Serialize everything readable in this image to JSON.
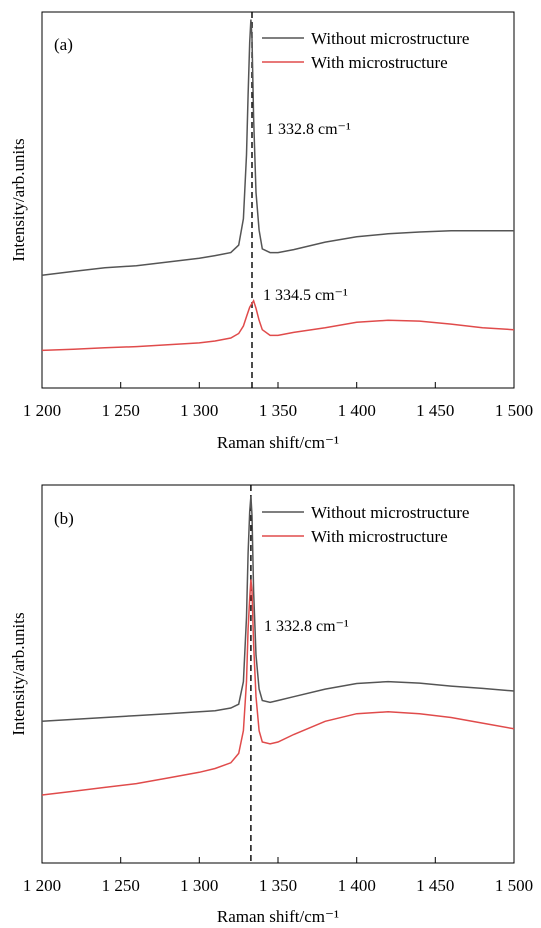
{
  "colors": {
    "without": "#555555",
    "with": "#e04b4b",
    "axis": "#000000",
    "refline": "#000000"
  },
  "chart_data": [
    {
      "type": "line",
      "panel_label": "(a)",
      "xlabel": "Raman shift/cm⁻¹",
      "ylabel": "Intensity/arb.units",
      "xlim": [
        1200,
        1500
      ],
      "ylim": [
        0,
        1
      ],
      "x_ticks": [
        1200,
        1250,
        1300,
        1350,
        1400,
        1450,
        1500
      ],
      "x_tick_labels": [
        "1 200",
        "1 250",
        "1 300",
        "1 350",
        "1 400",
        "1 450",
        "1 500"
      ],
      "grid": false,
      "legend_position": "top-right",
      "reference_line_x": 1333.5,
      "series": [
        {
          "name": "Without microstructure",
          "color_key": "without",
          "x": [
            1200,
            1220,
            1240,
            1260,
            1280,
            1300,
            1310,
            1320,
            1325,
            1328,
            1330,
            1331,
            1332,
            1332.8,
            1333.5,
            1334.5,
            1336,
            1338,
            1340,
            1345,
            1350,
            1360,
            1380,
            1400,
            1420,
            1440,
            1460,
            1480,
            1500
          ],
          "y": [
            0.3,
            0.31,
            0.32,
            0.325,
            0.335,
            0.345,
            0.352,
            0.36,
            0.38,
            0.45,
            0.62,
            0.78,
            0.92,
            0.98,
            0.93,
            0.72,
            0.52,
            0.42,
            0.37,
            0.36,
            0.36,
            0.368,
            0.388,
            0.402,
            0.41,
            0.415,
            0.418,
            0.418,
            0.418
          ]
        },
        {
          "name": "With microstructure",
          "color_key": "with",
          "x": [
            1200,
            1220,
            1240,
            1260,
            1280,
            1300,
            1310,
            1320,
            1325,
            1328,
            1330,
            1332,
            1334.5,
            1336,
            1338,
            1340,
            1345,
            1350,
            1360,
            1380,
            1400,
            1420,
            1440,
            1460,
            1480,
            1500
          ],
          "y": [
            0.1,
            0.103,
            0.107,
            0.11,
            0.115,
            0.12,
            0.125,
            0.133,
            0.145,
            0.165,
            0.19,
            0.215,
            0.232,
            0.212,
            0.18,
            0.155,
            0.14,
            0.14,
            0.148,
            0.16,
            0.175,
            0.18,
            0.178,
            0.17,
            0.16,
            0.155
          ]
        }
      ],
      "annotations": [
        {
          "text": "1 332.8 cm⁻¹",
          "x": 1332.8,
          "y": 0.75
        },
        {
          "text": "1 334.5 cm⁻¹",
          "x": 1334.5,
          "y": 0.28
        }
      ]
    },
    {
      "type": "line",
      "panel_label": "(b)",
      "xlabel": "Raman shift/cm⁻¹",
      "ylabel": "Intensity/arb.units",
      "xlim": [
        1200,
        1500
      ],
      "ylim": [
        0,
        1
      ],
      "x_ticks": [
        1200,
        1250,
        1300,
        1350,
        1400,
        1450,
        1500
      ],
      "x_tick_labels": [
        "1 200",
        "1 250",
        "1 300",
        "1 350",
        "1 400",
        "1 450",
        "1 500"
      ],
      "grid": false,
      "legend_position": "top-right",
      "reference_line_x": 1332.8,
      "series": [
        {
          "name": "Without microstructure",
          "color_key": "without",
          "x": [
            1200,
            1220,
            1240,
            1260,
            1280,
            1300,
            1310,
            1320,
            1325,
            1328,
            1330,
            1331,
            1332,
            1332.8,
            1333.5,
            1334.5,
            1336,
            1338,
            1340,
            1345,
            1350,
            1360,
            1380,
            1400,
            1420,
            1440,
            1460,
            1480,
            1500
          ],
          "y": [
            0.375,
            0.38,
            0.385,
            0.39,
            0.395,
            0.4,
            0.403,
            0.41,
            0.42,
            0.48,
            0.65,
            0.82,
            0.93,
            0.97,
            0.92,
            0.72,
            0.55,
            0.46,
            0.43,
            0.425,
            0.43,
            0.44,
            0.46,
            0.475,
            0.48,
            0.476,
            0.468,
            0.462,
            0.455
          ]
        },
        {
          "name": "With microstructure",
          "color_key": "with",
          "x": [
            1200,
            1220,
            1240,
            1260,
            1280,
            1300,
            1310,
            1320,
            1325,
            1328,
            1330,
            1331,
            1332,
            1332.8,
            1333.5,
            1334.5,
            1336,
            1338,
            1340,
            1345,
            1350,
            1360,
            1380,
            1400,
            1420,
            1440,
            1460,
            1480,
            1500
          ],
          "y": [
            0.18,
            0.19,
            0.2,
            0.21,
            0.225,
            0.24,
            0.25,
            0.265,
            0.29,
            0.35,
            0.48,
            0.62,
            0.7,
            0.75,
            0.72,
            0.58,
            0.44,
            0.35,
            0.32,
            0.315,
            0.32,
            0.34,
            0.375,
            0.395,
            0.4,
            0.395,
            0.385,
            0.37,
            0.355
          ]
        }
      ],
      "annotations": [
        {
          "text": "1 332.8 cm⁻¹",
          "x": 1332.8,
          "y": 0.83
        }
      ]
    }
  ]
}
